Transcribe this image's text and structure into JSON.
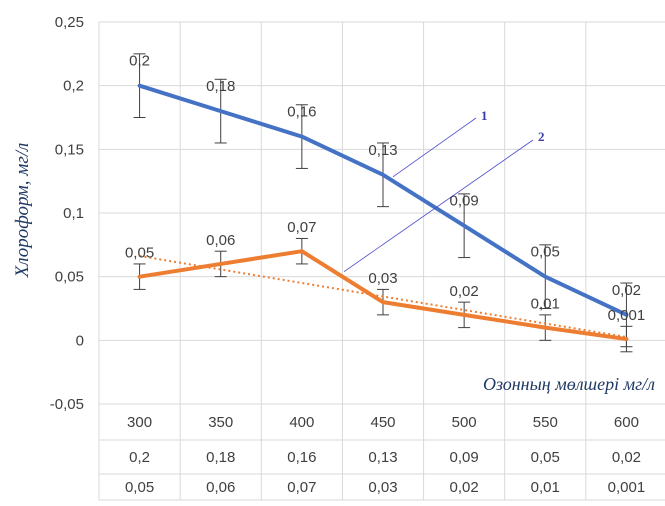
{
  "chart_data": {
    "type": "line",
    "categories": [
      "300",
      "350",
      "400",
      "450",
      "500",
      "550",
      "600"
    ],
    "series": [
      {
        "values": [
          0.2,
          0.18,
          0.16,
          0.13,
          0.09,
          0.05,
          0.02
        ],
        "labels": [
          "0,2",
          "0,18",
          "0,16",
          "0,13",
          "0,09",
          "0,05",
          "0,02"
        ],
        "error": [
          0.025,
          0.025,
          0.025,
          0.025,
          0.025,
          0.025,
          0.025
        ],
        "color": "#4472c4"
      },
      {
        "values": [
          0.05,
          0.06,
          0.07,
          0.03,
          0.02,
          0.01,
          0.001
        ],
        "labels": [
          "0,05",
          "0,06",
          "0,07",
          "0,03",
          "0,02",
          "0,01",
          "0,001"
        ],
        "error": [
          0.01,
          0.01,
          0.01,
          0.01,
          0.01,
          0.01,
          0.01
        ],
        "color": "#ed7d31",
        "trendline": "linear dotted"
      }
    ],
    "ylabel": "Хлороформ, мг/л",
    "xlabel": "Озонның мөлшері мг/л",
    "ylim": [
      -0.05,
      0.25
    ],
    "yticks": [
      "0,25",
      "0,2",
      "0,15",
      "0,1",
      "0,05",
      "0",
      "-0,05"
    ],
    "ytick_values": [
      0.25,
      0.2,
      0.15,
      0.1,
      0.05,
      0,
      -0.05
    ],
    "annotations": [
      "1",
      "2"
    ],
    "grid": true,
    "data_table": true
  }
}
